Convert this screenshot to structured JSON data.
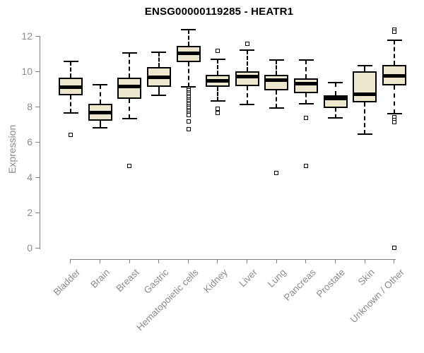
{
  "title": "ENSG00000119285 - HEATR1",
  "colors": {
    "box_fill": "#EDE8CD",
    "box_border": "#000000",
    "median": "#000000",
    "axis": "#808080",
    "tick_text": "#8c8c8c",
    "title_text": "#000000",
    "background": "#ffffff"
  },
  "chart_data": {
    "type": "boxplot",
    "title": "ENSG00000119285 - HEATR1",
    "xlabel": "",
    "ylabel": "Expression",
    "ylim": [
      0,
      12
    ],
    "yticks": [
      0,
      2,
      4,
      6,
      8,
      10,
      12
    ],
    "grid": false,
    "legend": false,
    "x_tick_rotation": 45,
    "categories": [
      "Bladder",
      "Brain",
      "Breast",
      "Gastric",
      "Hematopoietic cells",
      "Kidney",
      "Liver",
      "Lung",
      "Pancreas",
      "Prostate",
      "Skin",
      "Unknown / Other"
    ],
    "series": [
      {
        "name": "Bladder",
        "whisker_low": 7.7,
        "q1": 8.7,
        "median": 9.13,
        "q3": 9.7,
        "whisker_high": 10.62,
        "outliers": [
          6.45
        ]
      },
      {
        "name": "Brain",
        "whisker_low": 6.85,
        "q1": 7.25,
        "median": 7.7,
        "q3": 8.2,
        "whisker_high": 9.3,
        "outliers": []
      },
      {
        "name": "Breast",
        "whisker_low": 7.36,
        "q1": 8.5,
        "median": 9.2,
        "q3": 9.7,
        "whisker_high": 11.1,
        "outliers": [
          4.67
        ]
      },
      {
        "name": "Gastric",
        "whisker_low": 8.69,
        "q1": 9.18,
        "median": 9.7,
        "q3": 10.29,
        "whisker_high": 11.13,
        "outliers": []
      },
      {
        "name": "Hematopoietic cells",
        "whisker_low": 9.15,
        "q1": 10.56,
        "median": 11.08,
        "q3": 11.5,
        "whisker_high": 12.42,
        "outliers": [
          9.05,
          8.95,
          8.85,
          8.75,
          8.65,
          8.55,
          8.45,
          8.35,
          8.25,
          8.15,
          8.05,
          7.95,
          7.85,
          7.75,
          7.65,
          7.55,
          7.2,
          6.75
        ]
      },
      {
        "name": "Kidney",
        "whisker_low": 8.38,
        "q1": 9.18,
        "median": 9.5,
        "q3": 9.85,
        "whisker_high": 10.73,
        "outliers": [
          11.22,
          7.93,
          7.69
        ]
      },
      {
        "name": "Liver",
        "whisker_low": 8.16,
        "q1": 9.22,
        "median": 9.76,
        "q3": 10.06,
        "whisker_high": 11.26,
        "outliers": [
          11.62
        ]
      },
      {
        "name": "Lung",
        "whisker_low": 7.96,
        "q1": 8.96,
        "median": 9.55,
        "q3": 9.85,
        "whisker_high": 10.69,
        "outliers": [
          4.29
        ]
      },
      {
        "name": "Pancreas",
        "whisker_low": 8.22,
        "q1": 8.82,
        "median": 9.35,
        "q3": 9.65,
        "whisker_high": 10.7,
        "outliers": [
          7.42,
          4.69
        ]
      },
      {
        "name": "Prostate",
        "whisker_low": 7.42,
        "q1": 7.96,
        "median": 8.49,
        "q3": 8.69,
        "whisker_high": 9.42,
        "outliers": []
      },
      {
        "name": "Skin",
        "whisker_low": 6.49,
        "q1": 8.29,
        "median": 8.76,
        "q3": 10.03,
        "whisker_high": 10.36,
        "outliers": []
      },
      {
        "name": "Unknown / Other",
        "whisker_low": 7.65,
        "q1": 9.25,
        "median": 9.8,
        "q3": 10.4,
        "whisker_high": 11.82,
        "outliers": [
          12.42,
          12.3,
          7.45,
          7.3,
          7.15,
          0.05
        ]
      }
    ]
  }
}
